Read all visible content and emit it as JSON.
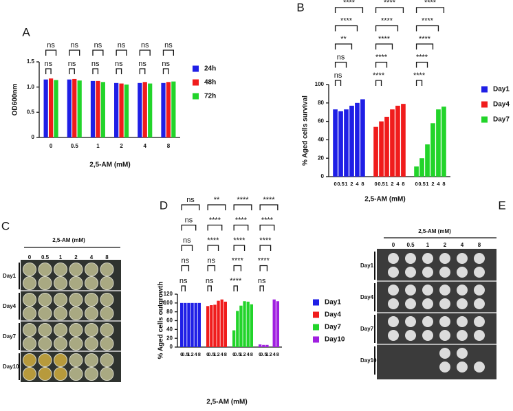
{
  "chart_data": [
    {
      "panel": "A",
      "type": "bar",
      "ylabel": "OD600nm",
      "xlabel": "2,5-AM (mM)",
      "categories": [
        "0",
        "0.5",
        "1",
        "2",
        "4",
        "8"
      ],
      "series": [
        {
          "name": "24h",
          "color": "#1f1fe6",
          "values": [
            1.15,
            1.15,
            1.12,
            1.08,
            1.08,
            1.08
          ]
        },
        {
          "name": "48h",
          "color": "#f01c1c",
          "values": [
            1.17,
            1.16,
            1.12,
            1.07,
            1.1,
            1.1
          ]
        },
        {
          "name": "72h",
          "color": "#22d42a",
          "values": [
            1.14,
            1.13,
            1.1,
            1.05,
            1.07,
            1.11
          ]
        }
      ],
      "ylim": [
        0,
        1.5
      ],
      "yticks": [
        0,
        0.5,
        {
          "value": 1,
          "label": "1.0"
        },
        1.5
      ],
      "comparisons": [
        {
          "label": "ns",
          "category": 0,
          "from": 0,
          "to": 1
        },
        {
          "label": "ns",
          "category": 0,
          "from": 0,
          "to": 2
        },
        {
          "label": "ns",
          "category": 1,
          "from": 0,
          "to": 1
        },
        {
          "label": "ns",
          "category": 1,
          "from": 0,
          "to": 2
        },
        {
          "label": "ns",
          "category": 2,
          "from": 0,
          "to": 1
        },
        {
          "label": "ns",
          "category": 2,
          "from": 0,
          "to": 2
        },
        {
          "label": "ns",
          "category": 3,
          "from": 0,
          "to": 1
        },
        {
          "label": "ns",
          "category": 3,
          "from": 0,
          "to": 2
        },
        {
          "label": "ns",
          "category": 4,
          "from": 0,
          "to": 1
        },
        {
          "label": "ns",
          "category": 4,
          "from": 0,
          "to": 2
        },
        {
          "label": "ns",
          "category": 5,
          "from": 0,
          "to": 1
        },
        {
          "label": "ns",
          "category": 5,
          "from": 0,
          "to": 2
        }
      ]
    },
    {
      "panel": "B",
      "type": "bar",
      "ylabel": "% Aged cells survival",
      "xlabel": "2,5-AM (mM)",
      "categories": [
        "0",
        "0.5",
        "1",
        "2",
        "4",
        "8"
      ],
      "series": [
        {
          "name": "Day1",
          "color": "#1f1fe6",
          "values": [
            73,
            71,
            73,
            77,
            80,
            84
          ]
        },
        {
          "name": "Day4",
          "color": "#f01c1c",
          "values": [
            54,
            60,
            65,
            73,
            77,
            79
          ]
        },
        {
          "name": "Day7",
          "color": "#22d42a",
          "values": [
            11,
            20,
            35,
            58,
            73,
            76
          ]
        }
      ],
      "ylim": [
        0,
        100
      ],
      "yticks": [
        0,
        20,
        40,
        60,
        80,
        100
      ],
      "comparisons": [
        {
          "label": "ns",
          "series": 0,
          "from": 0,
          "to": 1
        },
        {
          "label": "ns",
          "series": 0,
          "from": 0,
          "to": 2
        },
        {
          "label": "**",
          "series": 0,
          "from": 0,
          "to": 3
        },
        {
          "label": "****",
          "series": 0,
          "from": 0,
          "to": 4
        },
        {
          "label": "****",
          "series": 0,
          "from": 0,
          "to": 5
        },
        {
          "label": "****",
          "series": 1,
          "from": 0,
          "to": 1
        },
        {
          "label": "****",
          "series": 1,
          "from": 0,
          "to": 2
        },
        {
          "label": "****",
          "series": 1,
          "from": 0,
          "to": 3
        },
        {
          "label": "****",
          "series": 1,
          "from": 0,
          "to": 4
        },
        {
          "label": "****",
          "series": 1,
          "from": 0,
          "to": 5
        },
        {
          "label": "****",
          "series": 2,
          "from": 0,
          "to": 1
        },
        {
          "label": "****",
          "series": 2,
          "from": 0,
          "to": 2
        },
        {
          "label": "****",
          "series": 2,
          "from": 0,
          "to": 3
        },
        {
          "label": "****",
          "series": 2,
          "from": 0,
          "to": 4
        },
        {
          "label": "****",
          "series": 2,
          "from": 0,
          "to": 5
        }
      ]
    },
    {
      "panel": "D",
      "type": "bar",
      "ylabel": "% Aged cells outgrowth",
      "xlabel": "2,5-AM (mM)",
      "categories": [
        "0",
        "0.5",
        "1",
        "2",
        "4",
        "8"
      ],
      "series": [
        {
          "name": "Day1",
          "color": "#1f1fe6",
          "values": [
            100,
            100,
            100,
            100,
            100,
            100
          ]
        },
        {
          "name": "Day4",
          "color": "#f01c1c",
          "values": [
            93,
            95,
            96,
            105,
            108,
            103
          ]
        },
        {
          "name": "Day7",
          "color": "#22d42a",
          "values": [
            38,
            82,
            94,
            104,
            103,
            97
          ]
        },
        {
          "name": "Day10",
          "color": "#a020e0",
          "values": [
            6,
            5,
            5,
            0,
            108,
            104
          ]
        }
      ],
      "ylim": [
        0,
        120
      ],
      "yticks": [
        0,
        20,
        40,
        60,
        80,
        100,
        120
      ],
      "comparisons": [
        {
          "label": "ns",
          "series": 0,
          "from": 0,
          "to": 1
        },
        {
          "label": "ns",
          "series": 0,
          "from": 0,
          "to": 2
        },
        {
          "label": "ns",
          "series": 0,
          "from": 0,
          "to": 3
        },
        {
          "label": "ns",
          "series": 0,
          "from": 0,
          "to": 4
        },
        {
          "label": "ns",
          "series": 0,
          "from": 0,
          "to": 5
        },
        {
          "label": "ns",
          "series": 1,
          "from": 0,
          "to": 1
        },
        {
          "label": "ns",
          "series": 1,
          "from": 0,
          "to": 2
        },
        {
          "label": "****",
          "series": 1,
          "from": 0,
          "to": 3
        },
        {
          "label": "****",
          "series": 1,
          "from": 0,
          "to": 4
        },
        {
          "label": "**",
          "series": 1,
          "from": 0,
          "to": 5
        },
        {
          "label": "****",
          "series": 2,
          "from": 0,
          "to": 1
        },
        {
          "label": "****",
          "series": 2,
          "from": 0,
          "to": 2
        },
        {
          "label": "****",
          "series": 2,
          "from": 0,
          "to": 3
        },
        {
          "label": "****",
          "series": 2,
          "from": 0,
          "to": 4
        },
        {
          "label": "****",
          "series": 2,
          "from": 0,
          "to": 5
        },
        {
          "label": "ns",
          "series": 3,
          "from": 0,
          "to": 1
        },
        {
          "label": "****",
          "series": 3,
          "from": 0,
          "to": 2
        },
        {
          "label": "****",
          "series": 3,
          "from": 0,
          "to": 3
        },
        {
          "label": "****",
          "series": 3,
          "from": 0,
          "to": 4
        },
        {
          "label": "****",
          "series": 3,
          "from": 0,
          "to": 5
        }
      ]
    }
  ],
  "images": [
    {
      "panel": "C",
      "title": "2,5-AM (mM)",
      "columns": [
        "0",
        "0.5",
        "1",
        "2",
        "4",
        "8"
      ],
      "rows": [
        "Day1",
        "Day4",
        "Day7",
        "Day10"
      ]
    },
    {
      "panel": "E",
      "title": "2,5-AM (mM)",
      "columns": [
        "0",
        "0.5",
        "1",
        "2",
        "4",
        "8"
      ],
      "rows": [
        "Day1",
        "Day4",
        "Day7",
        "Day10"
      ]
    }
  ]
}
